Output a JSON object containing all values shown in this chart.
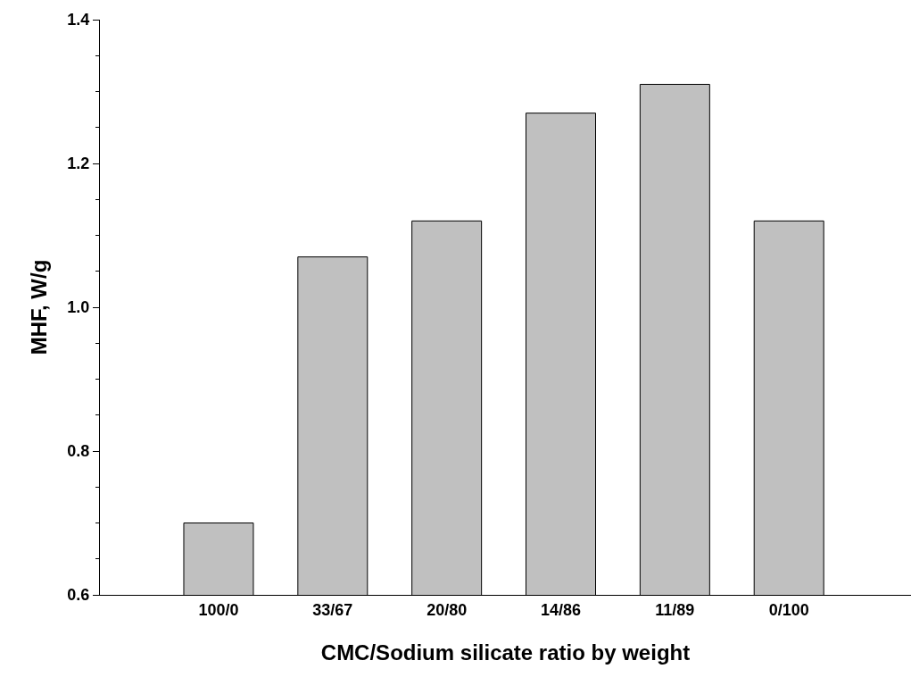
{
  "chart_data": {
    "type": "bar",
    "xlabel": "CMC/Sodium silicate ratio by weight",
    "ylabel": "MHF, W/g",
    "categories": [
      "100/0",
      "33/67",
      "20/80",
      "14/86",
      "11/89",
      "0/100"
    ],
    "values": [
      0.7,
      1.07,
      1.12,
      1.27,
      1.31,
      1.12
    ],
    "color": "#c0c0c0",
    "ylim": [
      0.6,
      1.4
    ],
    "yticks": [
      0.6,
      {
        "value": 0.65,
        "label": null
      },
      {
        "value": 0.7,
        "label": null
      },
      {
        "value": 0.75,
        "label": null
      },
      0.8,
      {
        "value": 0.85,
        "label": null
      },
      {
        "value": 0.9,
        "label": null
      },
      {
        "value": 0.95,
        "label": null
      },
      {
        "value": 1.0,
        "label": "1.0"
      },
      {
        "value": 1.05,
        "label": null
      },
      {
        "value": 1.1,
        "label": null
      },
      {
        "value": 1.15,
        "label": null
      },
      1.2,
      {
        "value": 1.25,
        "label": null
      },
      {
        "value": 1.3,
        "label": null
      },
      {
        "value": 1.35,
        "label": null
      },
      1.4
    ]
  }
}
